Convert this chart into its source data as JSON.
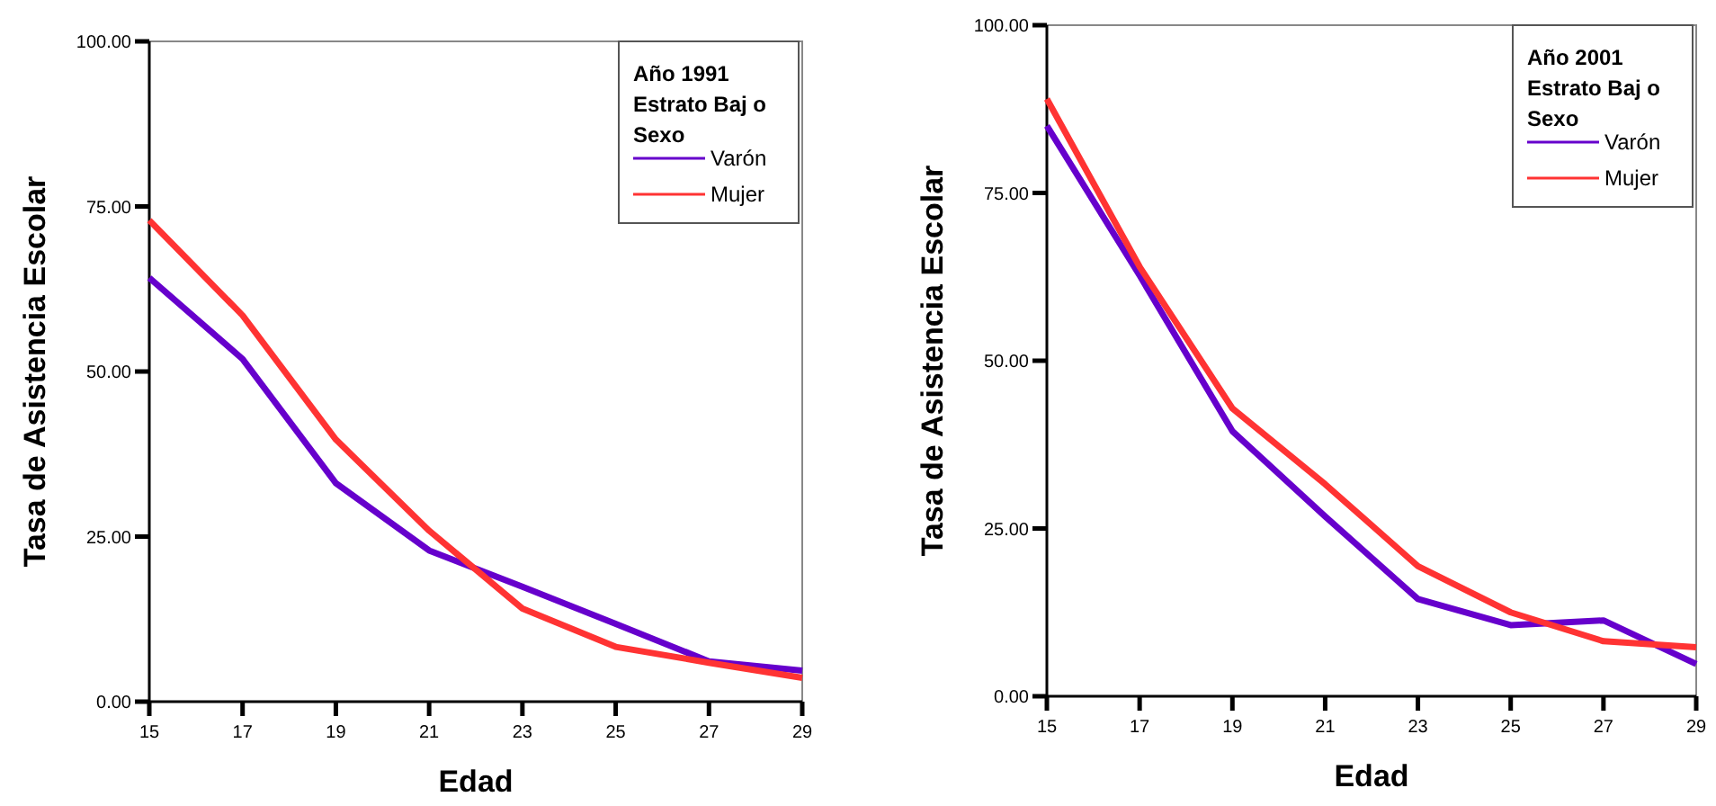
{
  "chart_data": [
    {
      "type": "line",
      "xlabel": "Edad",
      "ylabel": "Tasa de Asistencia Escolar",
      "legend_title": "Año 1991\nEstrato Baj o\nSexo",
      "legend": "top right",
      "x": [
        15,
        17,
        19,
        21,
        23,
        25,
        27,
        29
      ],
      "xlim": [
        15,
        29
      ],
      "xticks": [
        15,
        17,
        19,
        21,
        23,
        25,
        27,
        29
      ],
      "ylim": [
        0,
        100
      ],
      "yticks": [
        {
          "value": 0,
          "label": "0.00"
        },
        {
          "value": 25,
          "label": "25.00"
        },
        {
          "value": 50,
          "label": "50.00"
        },
        {
          "value": 75,
          "label": "75.00"
        },
        {
          "value": 100,
          "label": "100.00"
        }
      ],
      "grid": false,
      "series": [
        {
          "name": "Varón",
          "color": "#6600cc",
          "values": [
            64.2,
            51.9,
            33.1,
            22.9,
            17.4,
            11.8,
            6.1,
            4.7
          ]
        },
        {
          "name": "Mujer",
          "color": "#ff3333",
          "values": [
            72.9,
            58.5,
            39.7,
            25.9,
            14.1,
            8.3,
            5.9,
            3.6
          ]
        }
      ]
    },
    {
      "type": "line",
      "xlabel": "Edad",
      "ylabel": "Tasa de Asistencia Escolar",
      "legend_title": "Año 2001\nEstrato Baj o\nSexo",
      "legend": "top right",
      "x": [
        15,
        17,
        19,
        21,
        23,
        25,
        27,
        29
      ],
      "xlim": [
        15,
        29
      ],
      "xticks": [
        15,
        17,
        19,
        21,
        23,
        25,
        27,
        29
      ],
      "ylim": [
        0,
        100
      ],
      "yticks": [
        {
          "value": 0,
          "label": "0.00"
        },
        {
          "value": 25,
          "label": "25.00"
        },
        {
          "value": 50,
          "label": "50.00"
        },
        {
          "value": 75,
          "label": "75.00"
        },
        {
          "value": 100,
          "label": "100.00"
        }
      ],
      "grid": false,
      "series": [
        {
          "name": "Varón",
          "color": "#6600cc",
          "values": [
            85,
            62.7,
            39.5,
            26.8,
            14.5,
            10.6,
            11.3,
            4.8
          ]
        },
        {
          "name": "Mujer",
          "color": "#ff3333",
          "values": [
            89,
            64,
            42.9,
            31.6,
            19.4,
            12.5,
            8.2,
            7.3
          ]
        }
      ]
    }
  ]
}
